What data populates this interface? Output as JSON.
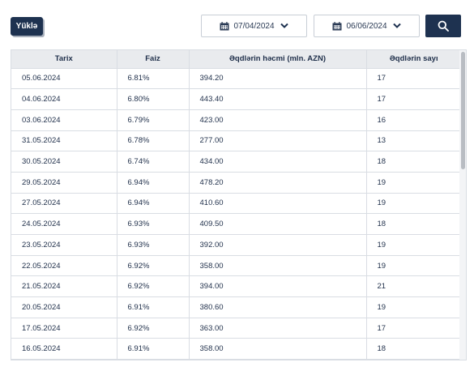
{
  "toolbar": {
    "load_label": "Yüklə",
    "date_from": "07/04/2024",
    "date_to": "06/06/2024"
  },
  "colors": {
    "primary": "#1e3250",
    "header_bg": "#e9ebee",
    "border": "#d9dde3"
  },
  "icons": {
    "date": "calendar-icon",
    "dropdown": "chevron-down-icon",
    "search": "search-icon"
  },
  "table": {
    "headers": [
      "Tarix",
      "Faiz",
      "Əqdlərin həcmi (mln. AZN)",
      "Əqdlərin sayı"
    ],
    "rows": [
      [
        "05.06.2024",
        "6.81%",
        "394.20",
        "17"
      ],
      [
        "04.06.2024",
        "6.80%",
        "443.40",
        "17"
      ],
      [
        "03.06.2024",
        "6.79%",
        "423.00",
        "16"
      ],
      [
        "31.05.2024",
        "6.78%",
        "277.00",
        "13"
      ],
      [
        "30.05.2024",
        "6.74%",
        "434.00",
        "18"
      ],
      [
        "29.05.2024",
        "6.94%",
        "478.20",
        "19"
      ],
      [
        "27.05.2024",
        "6.94%",
        "410.60",
        "19"
      ],
      [
        "24.05.2024",
        "6.93%",
        "409.50",
        "18"
      ],
      [
        "23.05.2024",
        "6.93%",
        "392.00",
        "19"
      ],
      [
        "22.05.2024",
        "6.92%",
        "358.00",
        "19"
      ],
      [
        "21.05.2024",
        "6.92%",
        "394.00",
        "21"
      ],
      [
        "20.05.2024",
        "6.91%",
        "380.60",
        "19"
      ],
      [
        "17.05.2024",
        "6.92%",
        "363.00",
        "17"
      ],
      [
        "16.05.2024",
        "6.91%",
        "358.00",
        "18"
      ]
    ]
  }
}
